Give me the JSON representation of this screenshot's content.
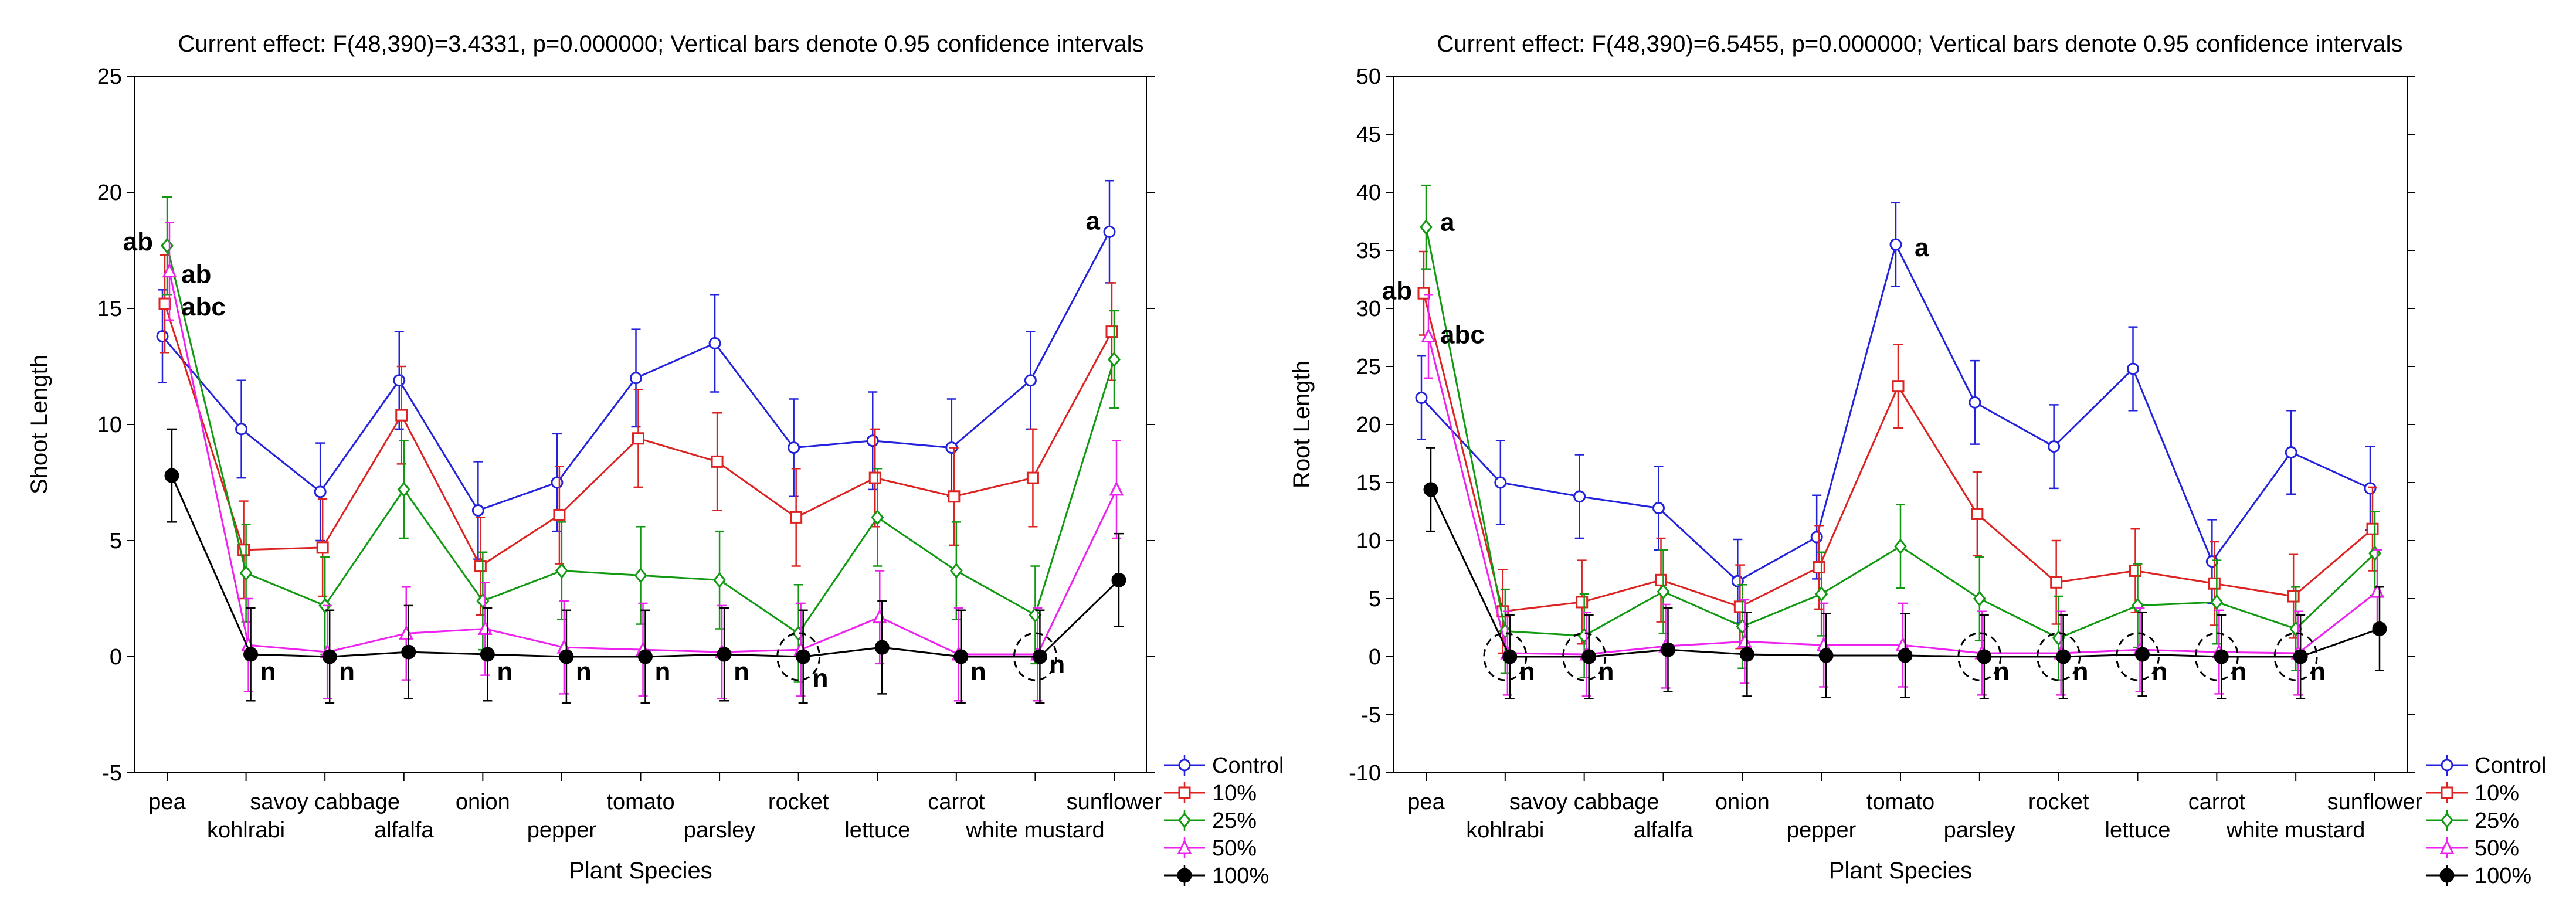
{
  "chart_data": [
    {
      "type": "line",
      "title": "Current effect: F(48,390)=3.4331, p=0.000000; Vertical bars denote 0.95 confidence intervals",
      "xlabel": "Plant Species",
      "ylabel": "Shoot Length",
      "ylim": [
        -5,
        25
      ],
      "yticks": [
        -5,
        0,
        5,
        10,
        15,
        20,
        25
      ],
      "grid": false,
      "legend_position": "bottom-right outside",
      "categories": [
        "pea",
        "kohlrabi",
        "savoy cabbage",
        "alfalfa",
        "onion",
        "pepper",
        "tomato",
        "parsley",
        "rocket",
        "lettuce",
        "carrot",
        "white mustard",
        "sunflower"
      ],
      "tick_labels_row1": [
        "pea",
        "savoy cabbage",
        "onion",
        "tomato",
        "rocket",
        "carrot",
        "sunflower"
      ],
      "tick_labels_row2": [
        "kohlrabi",
        "alfalfa",
        "pepper",
        "parsley",
        "lettuce",
        "white mustard"
      ],
      "series": [
        {
          "name": "Control",
          "color": "#2222dd",
          "marker": "circle",
          "values": [
            13.8,
            9.8,
            7.1,
            11.9,
            6.3,
            7.5,
            12.0,
            13.5,
            9.0,
            9.3,
            9.0,
            11.9,
            18.3
          ],
          "ci": [
            2.0,
            2.1,
            2.1,
            2.1,
            2.1,
            2.1,
            2.1,
            2.1,
            2.1,
            2.1,
            2.1,
            2.1,
            2.2
          ]
        },
        {
          "name": "10%",
          "color": "#dd2222",
          "marker": "square",
          "values": [
            15.2,
            4.6,
            4.7,
            10.4,
            3.9,
            6.1,
            9.4,
            8.4,
            6.0,
            7.7,
            6.9,
            7.7,
            14.0
          ],
          "ci": [
            2.1,
            2.1,
            2.1,
            2.1,
            2.1,
            2.1,
            2.1,
            2.1,
            2.1,
            2.1,
            2.1,
            2.1,
            2.1
          ]
        },
        {
          "name": "25%",
          "color": "#119911",
          "marker": "diamond",
          "values": [
            17.7,
            3.6,
            2.2,
            7.2,
            2.4,
            3.7,
            3.5,
            3.3,
            1.0,
            6.0,
            3.7,
            1.8,
            12.8
          ],
          "ci": [
            2.1,
            2.1,
            2.1,
            2.1,
            2.1,
            2.1,
            2.1,
            2.1,
            2.1,
            2.1,
            2.1,
            2.1,
            2.1
          ]
        },
        {
          "name": "50%",
          "color": "#ee22ee",
          "marker": "triangle",
          "values": [
            16.6,
            0.5,
            0.2,
            1.0,
            1.2,
            0.4,
            0.3,
            0.2,
            0.3,
            1.7,
            0.1,
            0.1,
            7.2
          ],
          "ci": [
            2.1,
            2.0,
            2.0,
            2.0,
            2.0,
            2.0,
            2.0,
            2.0,
            2.0,
            2.0,
            2.0,
            2.0,
            2.1
          ]
        },
        {
          "name": "100%",
          "color": "#000000",
          "marker": "filled-circle",
          "values": [
            7.8,
            0.1,
            0.0,
            0.2,
            0.1,
            0.0,
            0.0,
            0.1,
            0.0,
            0.4,
            0.0,
            0.0,
            3.3
          ],
          "ci": [
            2.0,
            2.0,
            2.0,
            2.0,
            2.0,
            2.0,
            2.0,
            2.0,
            2.0,
            2.0,
            2.0,
            2.0,
            2.0
          ]
        }
      ],
      "annotations": [
        {
          "text": "ab",
          "x": 0,
          "y": 17.9,
          "anchor": "left"
        },
        {
          "text": "ab",
          "x": 0,
          "y": 16.5,
          "anchor": "right"
        },
        {
          "text": "abc",
          "x": 0,
          "y": 15.1,
          "anchor": "right"
        },
        {
          "text": "a",
          "x": 12,
          "y": 18.8,
          "anchor": "left"
        },
        {
          "text": "n",
          "x": 1,
          "y": -0.6,
          "anchor": "right"
        },
        {
          "text": "n",
          "x": 2,
          "y": -0.6,
          "anchor": "right"
        },
        {
          "text": "n",
          "x": 4,
          "y": -0.6,
          "anchor": "right"
        },
        {
          "text": "n",
          "x": 5,
          "y": -0.6,
          "anchor": "right"
        },
        {
          "text": "n",
          "x": 6,
          "y": -0.6,
          "anchor": "right"
        },
        {
          "text": "n",
          "x": 7,
          "y": -0.6,
          "anchor": "right"
        },
        {
          "text": "n",
          "x": 8,
          "y": -0.9,
          "anchor": "right"
        },
        {
          "text": "n",
          "x": 10,
          "y": -0.6,
          "anchor": "right"
        },
        {
          "text": "n",
          "x": 11,
          "y": -0.3,
          "anchor": "right"
        }
      ],
      "dashed_circles": [
        {
          "x": 8,
          "y": 0
        },
        {
          "x": 11,
          "y": 0
        }
      ]
    },
    {
      "type": "line",
      "title": "Current effect: F(48,390)=6.5455, p=0.000000; Vertical bars denote 0.95 confidence intervals",
      "xlabel": "Plant Species",
      "ylabel": "Root Length",
      "ylim": [
        -10,
        50
      ],
      "yticks": [
        -10,
        -5,
        0,
        5,
        10,
        15,
        20,
        25,
        30,
        35,
        40,
        45,
        50
      ],
      "grid": false,
      "legend_position": "bottom-right outside",
      "categories": [
        "pea",
        "kohlrabi",
        "savoy cabbage",
        "alfalfa",
        "onion",
        "pepper",
        "tomato",
        "parsley",
        "rocket",
        "lettuce",
        "carrot",
        "white mustard",
        "sunflower"
      ],
      "tick_labels_row1": [
        "pea",
        "savoy cabbage",
        "onion",
        "tomato",
        "rocket",
        "carrot",
        "sunflower"
      ],
      "tick_labels_row2": [
        "kohlrabi",
        "alfalfa",
        "pepper",
        "parsley",
        "lettuce",
        "white mustard"
      ],
      "series": [
        {
          "name": "Control",
          "color": "#2222dd",
          "marker": "circle",
          "values": [
            22.3,
            15.0,
            13.8,
            12.8,
            6.5,
            10.3,
            35.5,
            21.9,
            18.1,
            24.8,
            8.2,
            17.6,
            14.5
          ],
          "ci": [
            3.6,
            3.6,
            3.6,
            3.6,
            3.6,
            3.6,
            3.6,
            3.6,
            3.6,
            3.6,
            3.6,
            3.6,
            3.6
          ]
        },
        {
          "name": "10%",
          "color": "#dd2222",
          "marker": "square",
          "values": [
            31.3,
            3.9,
            4.7,
            6.6,
            4.3,
            7.7,
            23.3,
            12.3,
            6.4,
            7.4,
            6.3,
            5.2,
            11.0
          ],
          "ci": [
            3.6,
            3.6,
            3.6,
            3.6,
            3.6,
            3.6,
            3.6,
            3.6,
            3.6,
            3.6,
            3.6,
            3.6,
            3.6
          ]
        },
        {
          "name": "25%",
          "color": "#119911",
          "marker": "diamond",
          "values": [
            37.0,
            2.2,
            1.8,
            5.6,
            2.6,
            5.4,
            9.5,
            5.0,
            1.6,
            4.4,
            4.7,
            2.4,
            8.9
          ],
          "ci": [
            3.6,
            3.6,
            3.6,
            3.6,
            3.6,
            3.6,
            3.6,
            3.6,
            3.6,
            3.6,
            3.6,
            3.6,
            3.6
          ]
        },
        {
          "name": "50%",
          "color": "#ee22ee",
          "marker": "triangle",
          "values": [
            27.6,
            0.3,
            0.2,
            0.9,
            1.3,
            1.0,
            1.0,
            0.3,
            0.3,
            0.6,
            0.4,
            0.3,
            5.6
          ],
          "ci": [
            3.6,
            3.6,
            3.6,
            3.6,
            3.6,
            3.6,
            3.6,
            3.6,
            3.6,
            3.6,
            3.6,
            3.6,
            3.6
          ]
        },
        {
          "name": "100%",
          "color": "#000000",
          "marker": "filled-circle",
          "values": [
            14.4,
            0.0,
            0.0,
            0.6,
            0.2,
            0.1,
            0.1,
            0.0,
            0.0,
            0.2,
            0.0,
            0.0,
            2.4
          ],
          "ci": [
            3.6,
            3.6,
            3.6,
            3.6,
            3.6,
            3.6,
            3.6,
            3.6,
            3.6,
            3.6,
            3.6,
            3.6,
            3.6
          ]
        }
      ],
      "annotations": [
        {
          "text": "ab",
          "x": 0,
          "y": 31.6,
          "anchor": "left"
        },
        {
          "text": "a",
          "x": 0,
          "y": 37.5,
          "anchor": "right"
        },
        {
          "text": "abc",
          "x": 0,
          "y": 27.8,
          "anchor": "right"
        },
        {
          "text": "a",
          "x": 6,
          "y": 35.3,
          "anchor": "right"
        },
        {
          "text": "n",
          "x": 1,
          "y": -1.2,
          "anchor": "right"
        },
        {
          "text": "n",
          "x": 2,
          "y": -1.2,
          "anchor": "right"
        },
        {
          "text": "n",
          "x": 7,
          "y": -1.2,
          "anchor": "right"
        },
        {
          "text": "n",
          "x": 8,
          "y": -1.2,
          "anchor": "right"
        },
        {
          "text": "n",
          "x": 9,
          "y": -1.2,
          "anchor": "right"
        },
        {
          "text": "n",
          "x": 10,
          "y": -1.2,
          "anchor": "right"
        },
        {
          "text": "n",
          "x": 11,
          "y": -1.2,
          "anchor": "right"
        }
      ],
      "dashed_circles": [
        {
          "x": 1,
          "y": 0
        },
        {
          "x": 2,
          "y": 0
        },
        {
          "x": 7,
          "y": 0
        },
        {
          "x": 8,
          "y": 0
        },
        {
          "x": 9,
          "y": 0
        },
        {
          "x": 10,
          "y": 0
        },
        {
          "x": 11,
          "y": 0
        }
      ]
    }
  ]
}
